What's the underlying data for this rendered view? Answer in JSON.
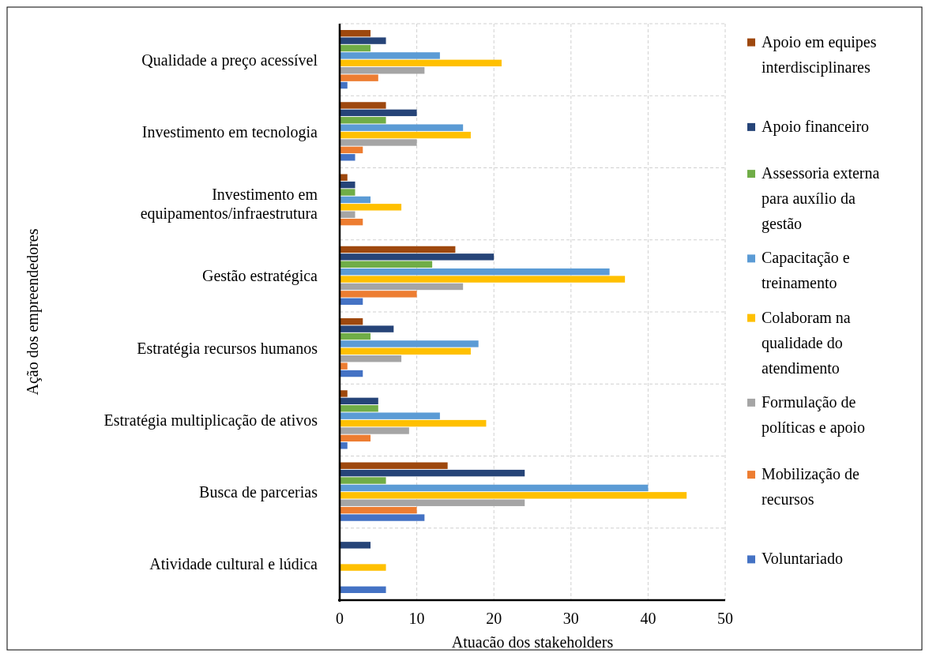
{
  "chart_data": {
    "type": "bar",
    "orientation": "horizontal",
    "xlabel": "Atuacão dos stakeholders",
    "ylabel": "Ação dos empreendedores",
    "categories": [
      "Qualidade a preço acessível",
      "Investimento em tecnologia",
      "Investimento em equipamentos/infraestrutura",
      "Gestão estratégica",
      "Estratégia recursos humanos",
      "Estratégia multiplicação de ativos",
      "Busca de parcerias",
      "Atividade cultural e lúdica"
    ],
    "series": [
      {
        "name": "Apoio em equipes interdisciplinares",
        "color": "#9e480e",
        "values": [
          4,
          6,
          1,
          15,
          3,
          1,
          14,
          0
        ]
      },
      {
        "name": "Apoio financeiro",
        "color": "#264478",
        "values": [
          6,
          10,
          2,
          20,
          7,
          5,
          24,
          4
        ]
      },
      {
        "name": "Assessoria externa para auxílio da gestão",
        "color": "#70ad47",
        "values": [
          4,
          6,
          2,
          12,
          4,
          5,
          6,
          0
        ]
      },
      {
        "name": "Capacitação e treinamento",
        "color": "#5b9bd5",
        "values": [
          13,
          16,
          4,
          35,
          18,
          13,
          40,
          0
        ]
      },
      {
        "name": "Colaboram na qualidade do atendimento",
        "color": "#ffc000",
        "values": [
          21,
          17,
          8,
          37,
          17,
          19,
          45,
          6
        ]
      },
      {
        "name": "Formulação de políticas e apoio",
        "color": "#a5a5a5",
        "values": [
          11,
          10,
          2,
          16,
          8,
          9,
          24,
          0
        ]
      },
      {
        "name": "Mobilização de recursos",
        "color": "#ed7d31",
        "values": [
          5,
          3,
          3,
          10,
          1,
          4,
          10,
          0
        ]
      },
      {
        "name": "Voluntariado",
        "color": "#4472c4",
        "values": [
          1,
          2,
          0,
          3,
          3,
          1,
          11,
          6
        ]
      }
    ],
    "xlim": [
      0,
      50
    ],
    "xticks": [
      0,
      10,
      20,
      30,
      40,
      50
    ],
    "grid": true,
    "legend": "right"
  }
}
